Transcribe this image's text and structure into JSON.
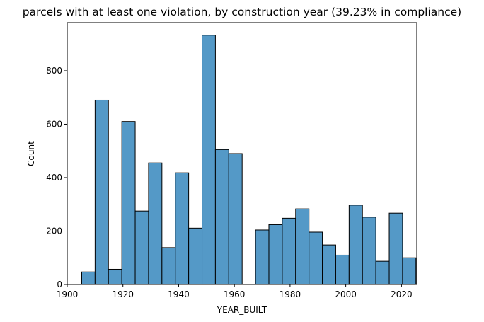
{
  "chart_data": {
    "type": "bar",
    "title": "parcels with at least one violation, by construction year (39.23% in compliance)",
    "xlabel": "YEAR_BUILT",
    "ylabel": "Count",
    "xlim": [
      1900,
      2025.5
    ],
    "ylim": [
      0,
      980
    ],
    "xticks": [
      "1900",
      "1920",
      "1940",
      "1960",
      "1980",
      "2000",
      "2020"
    ],
    "yticks": [
      "0",
      "200",
      "400",
      "600",
      "800"
    ],
    "grid": false,
    "bar_color": "#5499c7",
    "edge_color": "#000000",
    "bins": [
      {
        "start": 1905.2,
        "end": 1910.0,
        "count": 47
      },
      {
        "start": 1910.0,
        "end": 1914.8,
        "count": 690
      },
      {
        "start": 1914.8,
        "end": 1919.6,
        "count": 57
      },
      {
        "start": 1919.6,
        "end": 1924.4,
        "count": 610
      },
      {
        "start": 1924.4,
        "end": 1929.2,
        "count": 275
      },
      {
        "start": 1929.2,
        "end": 1934.0,
        "count": 455
      },
      {
        "start": 1934.0,
        "end": 1938.8,
        "count": 138
      },
      {
        "start": 1938.8,
        "end": 1943.6,
        "count": 418
      },
      {
        "start": 1943.6,
        "end": 1948.4,
        "count": 211
      },
      {
        "start": 1948.4,
        "end": 1953.2,
        "count": 933
      },
      {
        "start": 1953.2,
        "end": 1958.0,
        "count": 505
      },
      {
        "start": 1958.0,
        "end": 1962.8,
        "count": 490
      },
      {
        "start": 1962.8,
        "end": 1967.6,
        "count": 0
      },
      {
        "start": 1967.6,
        "end": 1972.4,
        "count": 204
      },
      {
        "start": 1972.4,
        "end": 1977.2,
        "count": 224
      },
      {
        "start": 1977.2,
        "end": 1982.0,
        "count": 248
      },
      {
        "start": 1982.0,
        "end": 1986.8,
        "count": 283
      },
      {
        "start": 1986.8,
        "end": 1991.6,
        "count": 196
      },
      {
        "start": 1991.6,
        "end": 1996.4,
        "count": 148
      },
      {
        "start": 1996.4,
        "end": 2001.2,
        "count": 110
      },
      {
        "start": 2001.2,
        "end": 2006.0,
        "count": 297
      },
      {
        "start": 2006.0,
        "end": 2010.8,
        "count": 252
      },
      {
        "start": 2010.8,
        "end": 2015.6,
        "count": 87
      },
      {
        "start": 2015.6,
        "end": 2020.4,
        "count": 267
      },
      {
        "start": 2020.4,
        "end": 2025.2,
        "count": 100
      }
    ]
  }
}
